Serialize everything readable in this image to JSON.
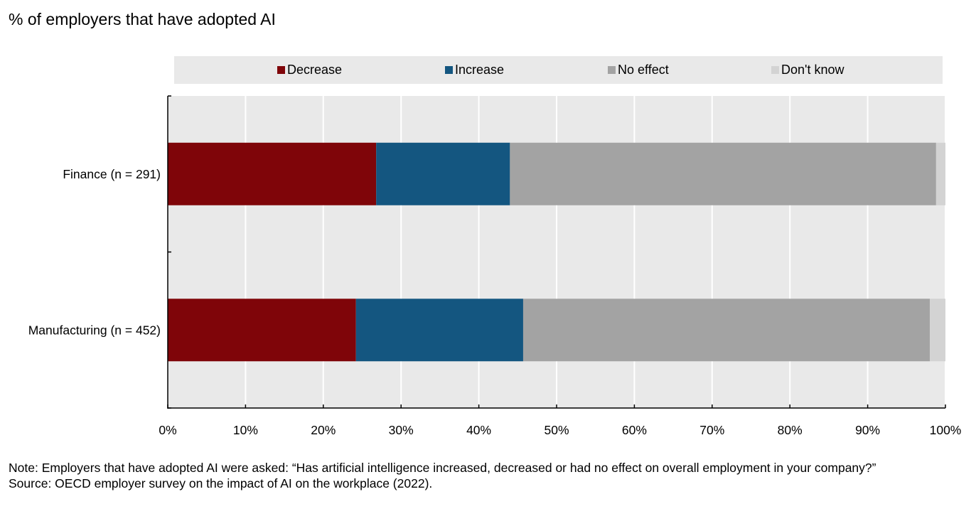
{
  "title": "% of employers that have adopted AI",
  "colors": {
    "decrease": "#7f0509",
    "increase": "#145680",
    "no_effect": "#a3a3a3",
    "dont_know": "#d3d3d3",
    "panel_bg": "#e9e9e9"
  },
  "chart_data": {
    "type": "bar",
    "orientation": "horizontal",
    "stacked": true,
    "categories": [
      "Finance (n = 291)",
      "Manufacturing (n = 452)"
    ],
    "series": [
      {
        "name": "Decrease",
        "values": [
          26.8,
          24.2
        ]
      },
      {
        "name": "Increase",
        "values": [
          17.2,
          21.5
        ]
      },
      {
        "name": "No effect",
        "values": [
          54.8,
          52.3
        ]
      },
      {
        "name": "Don't know",
        "values": [
          1.2,
          2.0
        ]
      }
    ],
    "xlim": [
      0,
      100
    ],
    "xticks": [
      "0%",
      "10%",
      "20%",
      "30%",
      "40%",
      "50%",
      "60%",
      "70%",
      "80%",
      "90%",
      "100%"
    ],
    "xtick_values": [
      0,
      10,
      20,
      30,
      40,
      50,
      60,
      70,
      80,
      90,
      100
    ],
    "grid": true,
    "legend": "top"
  },
  "note": "Note: Employers that have adopted AI were asked: “Has artificial intelligence increased, decreased or had no effect on overall employment in your company?”",
  "source": "Source: OECD employer survey on the impact of AI on the workplace (2022)."
}
